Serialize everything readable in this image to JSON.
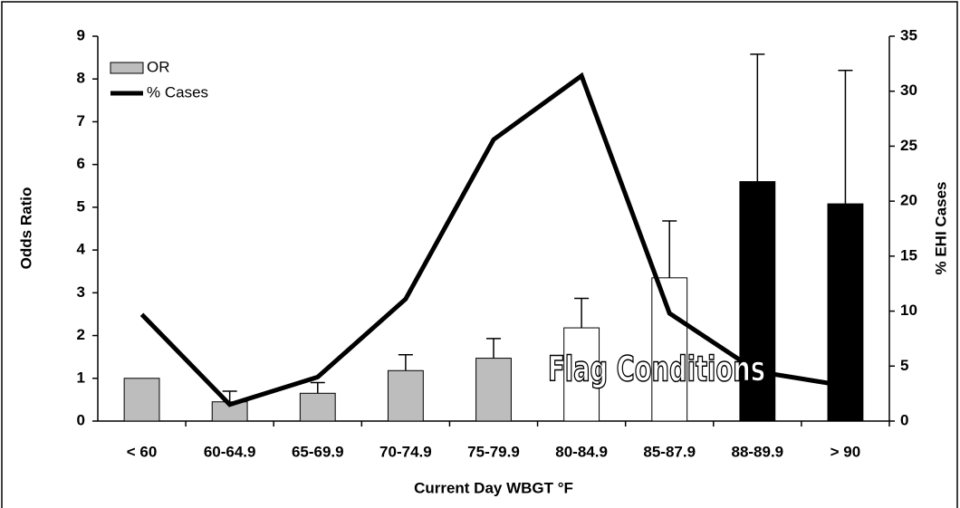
{
  "chart_data": {
    "type": "combo",
    "categories": [
      "< 60",
      "60-64.9",
      "65-69.9",
      "70-74.9",
      "75-79.9",
      "80-84.9",
      "85-87.9",
      "88-89.9",
      "> 90"
    ],
    "series": [
      {
        "name": "OR",
        "type": "bar",
        "axis": "y",
        "colors": [
          "#bdbdbd",
          "#bdbdbd",
          "#bdbdbd",
          "#bdbdbd",
          "#bdbdbd",
          "#ffffff",
          "#ffffff",
          "#000000",
          "#000000"
        ],
        "values": [
          1.0,
          0.45,
          0.65,
          1.18,
          1.47,
          2.18,
          3.35,
          5.6,
          5.08
        ],
        "errors": [
          null,
          0.25,
          0.25,
          0.37,
          0.46,
          0.69,
          1.33,
          2.98,
          3.12
        ]
      },
      {
        "name": "% Cases",
        "type": "line",
        "axis": "y2",
        "color": "#000000",
        "values": [
          9.7,
          1.5,
          4.0,
          11.1,
          25.6,
          31.4,
          9.8,
          4.5,
          3.2
        ]
      }
    ],
    "ylabel": "Odds Ratio",
    "y2label": "% EHI Cases",
    "xlabel": "Current Day WBGT  °F",
    "annotation": "Flag Conditions",
    "ylim": [
      0,
      9
    ],
    "yticks": [
      0,
      1,
      2,
      3,
      4,
      5,
      6,
      7,
      8,
      9
    ],
    "y2lim": [
      0,
      35
    ],
    "y2ticks": [
      0,
      5,
      10,
      15,
      20,
      25,
      30,
      35
    ],
    "legend": "upper left"
  }
}
